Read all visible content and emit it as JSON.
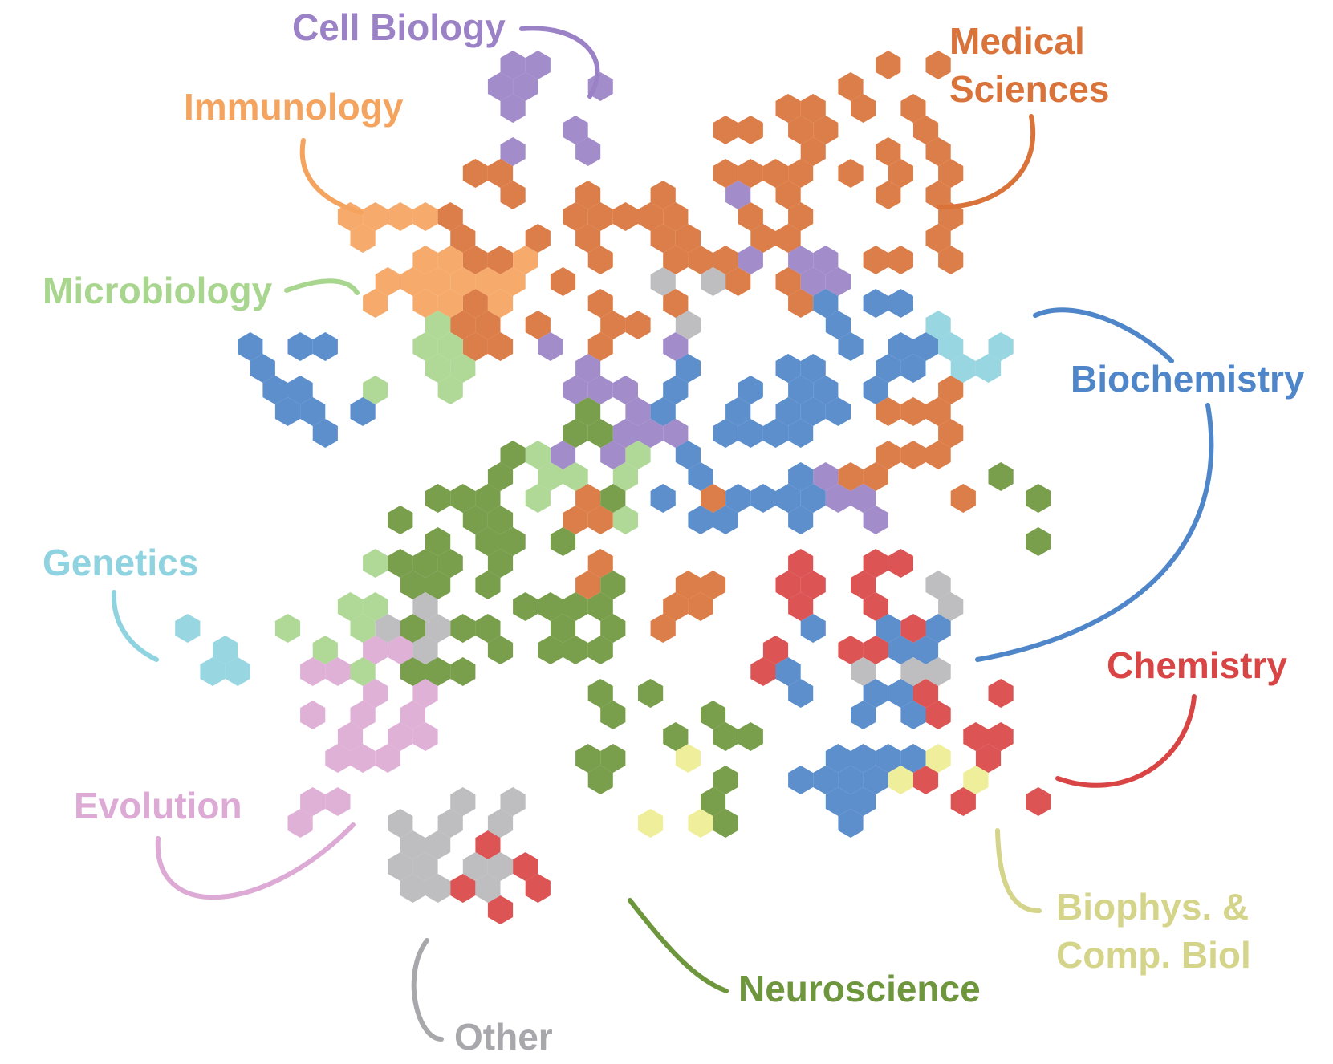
{
  "colors": {
    "cell_biology": "#9b82c6",
    "medical_sciences": "#d9733a",
    "immunology": "#f5a45f",
    "microbiology": "#a9d68f",
    "biochemistry": "#4f86c9",
    "genetics": "#8fd3e0",
    "chemistry": "#d94545",
    "evolution": "#dcaad4",
    "biophysics": "#eeee92",
    "neuroscience": "#6e963d",
    "other": "#b8b8bc"
  },
  "labels": {
    "cell_biology": "Cell Biology",
    "medical_sciences_1": "Medical",
    "medical_sciences_2": "Sciences",
    "immunology": "Immunology",
    "microbiology": "Microbiology",
    "biochemistry": "Biochemistry",
    "genetics": "Genetics",
    "chemistry": "Chemistry",
    "evolution": "Evolution",
    "biophysics_1": "Biophys. &",
    "biophysics_2": "Comp. Biol",
    "neuroscience": "Neuroscience",
    "other": "Other"
  },
  "label_colors": {
    "cell_biology": "#9b82c6",
    "medical_sciences": "#d9733a",
    "immunology": "#f5a45f",
    "microbiology": "#a9d68f",
    "biochemistry": "#4f86c9",
    "genetics": "#8fd3e0",
    "chemistry": "#d94545",
    "evolution": "#dcaad4",
    "biophysics": "#d4d48a",
    "neuroscience": "#6e963d",
    "other": "#a8a8ac"
  }
}
